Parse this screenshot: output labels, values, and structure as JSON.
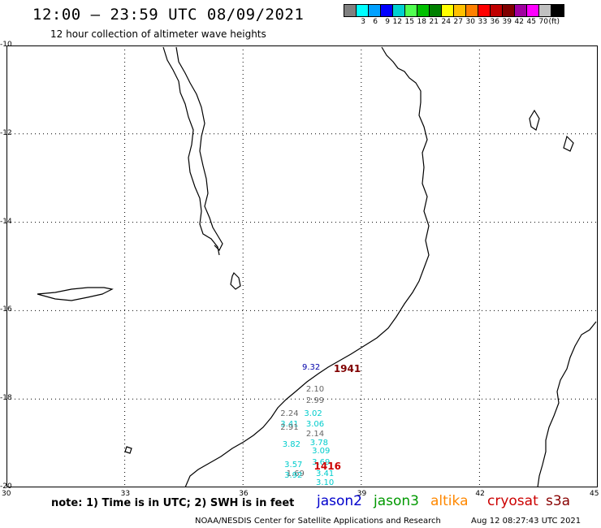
{
  "title": "12:00 – 23:59 UTC 08/09/2021",
  "subtitle": "12 hour collection of altimeter wave heights",
  "color_scale": {
    "unit_label": "(ft)",
    "swatches": [
      {
        "color": "#808080",
        "label": ""
      },
      {
        "color": "#00ffff",
        "label": "3"
      },
      {
        "color": "#00a0ff",
        "label": "6"
      },
      {
        "color": "#0000ff",
        "label": "9"
      },
      {
        "color": "#00d0d0",
        "label": "12"
      },
      {
        "color": "#50ff50",
        "label": "15"
      },
      {
        "color": "#00c000",
        "label": "18"
      },
      {
        "color": "#008000",
        "label": "21"
      },
      {
        "color": "#ffff00",
        "label": "24"
      },
      {
        "color": "#ffc000",
        "label": "27"
      },
      {
        "color": "#ff8000",
        "label": "30"
      },
      {
        "color": "#ff0000",
        "label": "33"
      },
      {
        "color": "#c00000",
        "label": "36"
      },
      {
        "color": "#800000",
        "label": "39"
      },
      {
        "color": "#a000a0",
        "label": "42"
      },
      {
        "color": "#ff00ff",
        "label": "45"
      },
      {
        "color": "#c0c0c0",
        "label": "70"
      },
      {
        "color": "#000000",
        "label": ""
      }
    ]
  },
  "axes": {
    "y_labels": [
      "-10",
      "-12",
      "-14",
      "-16",
      "-18",
      "-20"
    ],
    "x_labels": [
      "30",
      "33",
      "36",
      "39",
      "42",
      "45"
    ]
  },
  "observations": [
    {
      "text": "9.32",
      "color": "#0000aa",
      "lon": 37.5,
      "lat": -17.3
    },
    {
      "text": "1941",
      "color": "#800000",
      "lon": 38.3,
      "lat": -17.3,
      "big": true
    },
    {
      "text": "2.10",
      "color": "#666666",
      "lon": 37.6,
      "lat": -17.8
    },
    {
      "text": "2.99",
      "color": "#666666",
      "lon": 37.6,
      "lat": -18.05
    },
    {
      "text": "2.24",
      "color": "#666666",
      "lon": 36.95,
      "lat": -18.35
    },
    {
      "text": "3.02",
      "color": "#00cccc",
      "lon": 37.55,
      "lat": -18.35
    },
    {
      "text": "3.41",
      "color": "#00cccc",
      "lon": 36.95,
      "lat": -18.58
    },
    {
      "text": "3.06",
      "color": "#00cccc",
      "lon": 37.6,
      "lat": -18.58
    },
    {
      "text": "2.91",
      "color": "#666666",
      "lon": 36.95,
      "lat": -18.65
    },
    {
      "text": "2.14",
      "color": "#666666",
      "lon": 37.6,
      "lat": -18.8
    },
    {
      "text": "3.82",
      "color": "#00cccc",
      "lon": 37.0,
      "lat": -19.05
    },
    {
      "text": "3.78",
      "color": "#00cccc",
      "lon": 37.7,
      "lat": -19.0
    },
    {
      "text": "3.09",
      "color": "#00cccc",
      "lon": 37.75,
      "lat": -19.2
    },
    {
      "text": "3.69",
      "color": "#00cccc",
      "lon": 37.75,
      "lat": -19.45
    },
    {
      "text": "3.57",
      "color": "#00cccc",
      "lon": 37.05,
      "lat": -19.5
    },
    {
      "text": "1416",
      "color": "#cc0000",
      "lon": 37.8,
      "lat": -19.5,
      "big": true
    },
    {
      "text": "1.69",
      "color": "#666666",
      "lon": 37.1,
      "lat": -19.7
    },
    {
      "text": "3.92",
      "color": "#00cccc",
      "lon": 37.05,
      "lat": -19.75
    },
    {
      "text": "3.41",
      "color": "#00cccc",
      "lon": 37.85,
      "lat": -19.7
    },
    {
      "text": "3.10",
      "color": "#00cccc",
      "lon": 37.85,
      "lat": -19.9
    }
  ],
  "note": "note:  1) Time is in UTC;  2) SWH is in feet",
  "legend": [
    {
      "text": "jason2",
      "color": "#0000cc"
    },
    {
      "text": "jason3",
      "color": "#009900"
    },
    {
      "text": "altika",
      "color": "#ff8800"
    },
    {
      "text": "cryosat",
      "color": "#cc0000"
    },
    {
      "text": "s3a",
      "color": "#880000"
    }
  ],
  "footer_left": "NOAA/NESDIS Center for Satellite Applications and Research",
  "footer_right": "Aug 12 08:27:43 UTC 2021"
}
